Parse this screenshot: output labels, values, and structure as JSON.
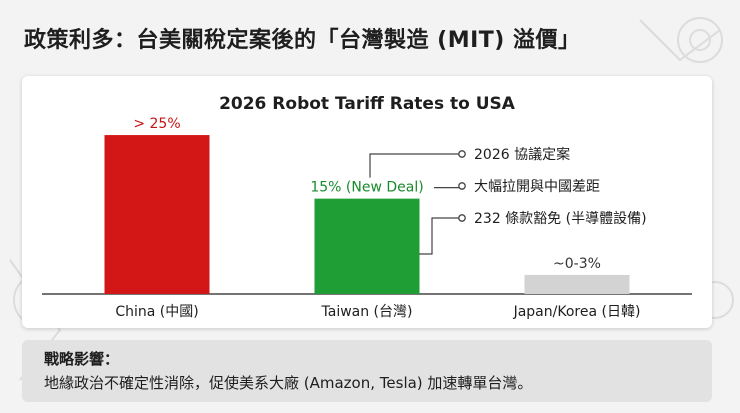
{
  "page": {
    "title": "政策利多：台美關稅定案後的「台灣製造 (MIT) 溢價」"
  },
  "chart_data": {
    "type": "bar",
    "title": "2026 Robot Tariff Rates to USA",
    "categories": [
      "China (中國)",
      "Taiwan (台灣)",
      "Japan/Korea (日韓)"
    ],
    "values": [
      25,
      15,
      3
    ],
    "value_labels": [
      "> 25%",
      "15% (New Deal)",
      "~0-3%"
    ],
    "colors": [
      "#d31616",
      "#1e9e34",
      "#d3d3d3"
    ],
    "label_colors": [
      "#c41515",
      "#1a8a2e",
      "#333333"
    ],
    "ylim": [
      0,
      28
    ],
    "xlabel": "",
    "ylabel": "",
    "grid": false,
    "annotations": [
      "2026 協議定案",
      "大幅拉開與中國差距",
      "232 條款豁免 (半導體設備)"
    ]
  },
  "notes": {
    "title": "戰略影響：",
    "body": "地緣政治不確定性消除，促使美系大廠 (Amazon, Tesla) 加速轉單台灣。"
  }
}
